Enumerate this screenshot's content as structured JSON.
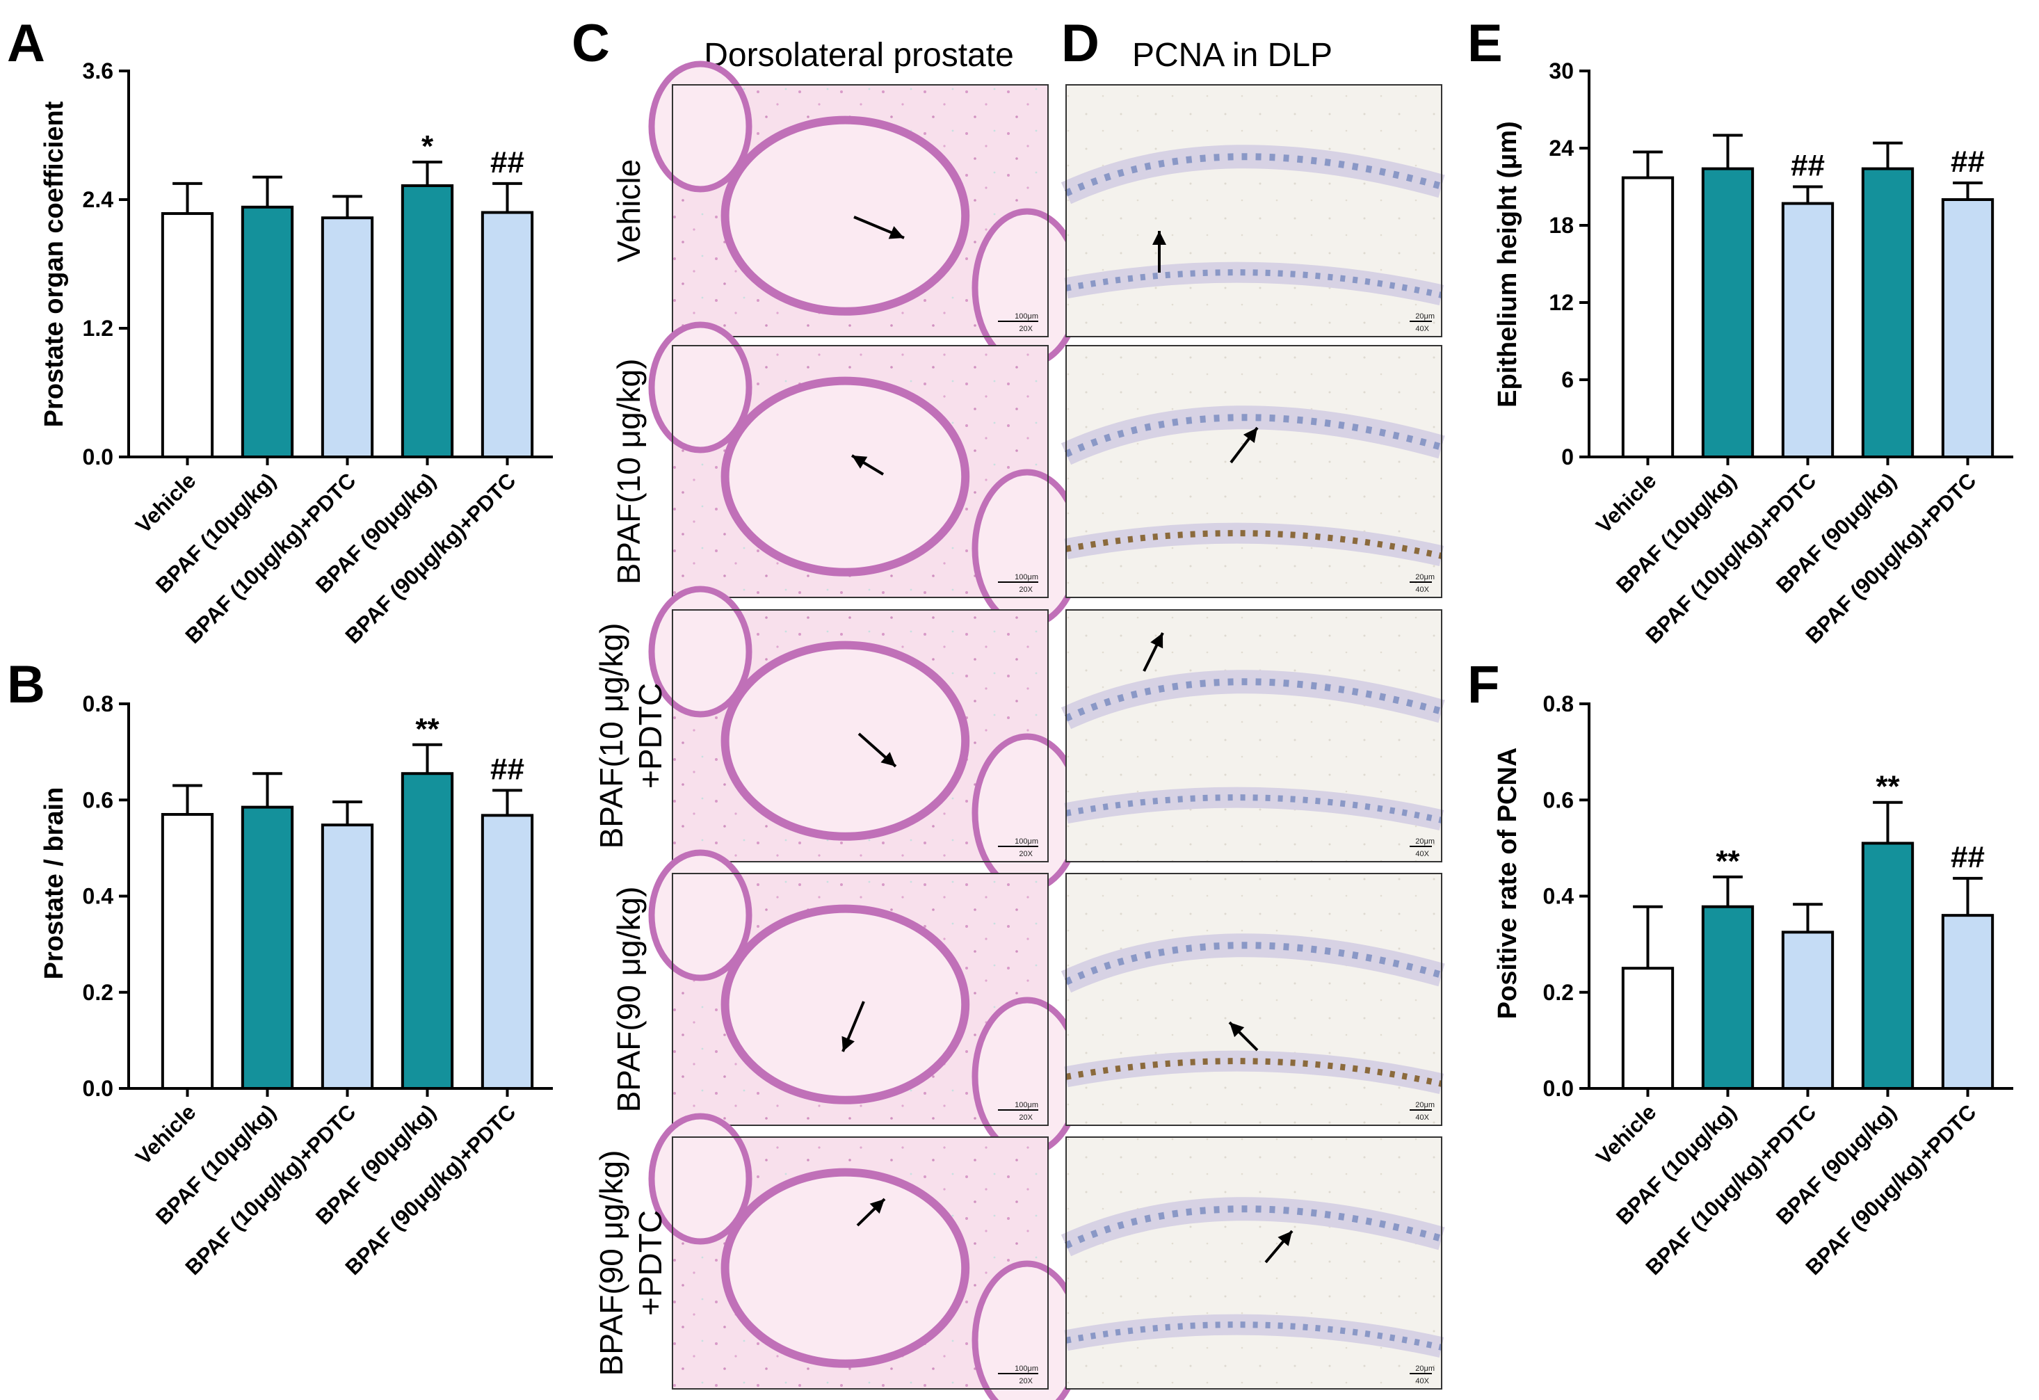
{
  "colors": {
    "vehicle": "#ffffff",
    "bpaf": "#14919b",
    "pdtc": "#c5dcf5",
    "axis": "#000000",
    "he_bg": "#f6dbe9",
    "he_tissue": "#c070b8",
    "ihc_bg": "#f3f1ec",
    "ihc_nuclei": "#8a98c6",
    "ihc_pos": "#8b6a3c"
  },
  "charts": [
    {
      "letter": "A",
      "ylabel": "Prostate organ coefficient",
      "yticks": [
        "0.0",
        "1.2",
        "2.4",
        "3.6"
      ],
      "sig_labels": [
        "",
        "",
        "",
        "*",
        "##"
      ]
    },
    {
      "letter": "B",
      "ylabel": "Prostate / brain",
      "yticks": [
        "0.0",
        "0.2",
        "0.4",
        "0.6",
        "0.8"
      ],
      "sig_labels": [
        "",
        "",
        "",
        "**",
        "##"
      ]
    },
    {
      "letter": "E",
      "ylabel": "Epithelium height (μm)",
      "yticks": [
        "0",
        "6",
        "12",
        "18",
        "24",
        "30"
      ],
      "sig_labels": [
        "",
        "",
        "##",
        "",
        "##"
      ]
    },
    {
      "letter": "F",
      "ylabel": "Positive rate of PCNA",
      "yticks": [
        "0.0",
        "0.2",
        "0.4",
        "0.6",
        "0.8"
      ],
      "sig_labels": [
        "",
        "**",
        "",
        "**",
        "##"
      ]
    }
  ],
  "chart_data": [
    {
      "type": "bar",
      "panel": "A",
      "ylabel": "Prostate organ coefficient",
      "categories": [
        "Vehicle",
        "BPAF (10μg/kg)",
        "BPAF (10μg/kg)+PDTC",
        "BPAF (90μg/kg)",
        "BPAF (90μg/kg)+PDTC"
      ],
      "values": [
        2.27,
        2.33,
        2.23,
        2.53,
        2.28
      ],
      "errors": [
        0.28,
        0.28,
        0.2,
        0.22,
        0.27
      ],
      "ylim": [
        0,
        3.6
      ]
    },
    {
      "type": "bar",
      "panel": "B",
      "ylabel": "Prostate / brain",
      "categories": [
        "Vehicle",
        "BPAF (10μg/kg)",
        "BPAF (10μg/kg)+PDTC",
        "BPAF (90μg/kg)",
        "BPAF (90μg/kg)+PDTC"
      ],
      "values": [
        0.57,
        0.585,
        0.548,
        0.655,
        0.568
      ],
      "errors": [
        0.06,
        0.07,
        0.048,
        0.06,
        0.052
      ],
      "ylim": [
        0,
        0.8
      ]
    },
    {
      "type": "bar",
      "panel": "E",
      "ylabel": "Epithelium height (μm)",
      "categories": [
        "Vehicle",
        "BPAF (10μg/kg)",
        "BPAF (10μg/kg)+PDTC",
        "BPAF (90μg/kg)",
        "BPAF (90μg/kg)+PDTC"
      ],
      "values": [
        21.7,
        22.4,
        19.7,
        22.4,
        20.0
      ],
      "errors": [
        2.0,
        2.6,
        1.3,
        2.0,
        1.3
      ],
      "ylim": [
        0,
        30
      ]
    },
    {
      "type": "bar",
      "panel": "F",
      "ylabel": "Positive rate of PCNA",
      "categories": [
        "Vehicle",
        "BPAF (10μg/kg)",
        "BPAF (10μg/kg)+PDTC",
        "BPAF (90μg/kg)",
        "BPAF (90μg/kg)+PDTC"
      ],
      "values": [
        0.25,
        0.378,
        0.325,
        0.51,
        0.36
      ],
      "errors": [
        0.128,
        0.062,
        0.058,
        0.085,
        0.077
      ],
      "ylim": [
        0,
        0.8
      ]
    }
  ],
  "micrographs": {
    "panel_c": {
      "letter": "C",
      "title": "Dorsolateral prostate",
      "scale_text": "100μm",
      "mag_text": "20X"
    },
    "panel_d": {
      "letter": "D",
      "title": "PCNA in DLP",
      "scale_text": "20μm",
      "mag_text": "40X"
    },
    "rows": [
      {
        "lines": [
          "Vehicle"
        ]
      },
      {
        "lines": [
          "BPAF(10 μg/kg)"
        ]
      },
      {
        "lines": [
          "BPAF(10 μg/kg)",
          "+PDTC"
        ]
      },
      {
        "lines": [
          "BPAF(90 μg/kg)"
        ]
      },
      {
        "lines": [
          "BPAF(90 μg/kg)",
          "+PDTC"
        ]
      }
    ]
  }
}
